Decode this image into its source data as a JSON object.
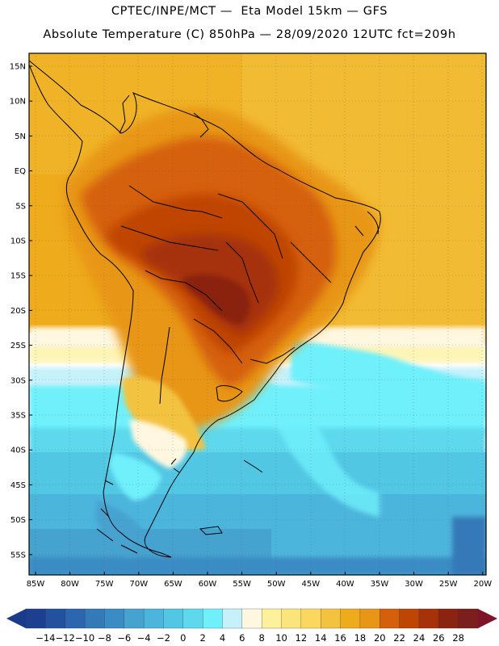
{
  "header": {
    "line1": "CPTEC/INPE/MCT —  Eta Model 15km — GFS",
    "line2": "Absolute Temperature (C) 850hPa — 28/09/2020 12UTC fct=209h"
  },
  "map": {
    "lat_labels": [
      "15N",
      "10N",
      "5N",
      "EQ",
      "5S",
      "10S",
      "15S",
      "20S",
      "25S",
      "30S",
      "35S",
      "40S",
      "45S",
      "50S",
      "55S"
    ],
    "lon_labels": [
      "85W",
      "80W",
      "75W",
      "70W",
      "65W",
      "60W",
      "55W",
      "50W",
      "45W",
      "40W",
      "35W",
      "30W",
      "25W",
      "20W"
    ]
  },
  "colorbar": {
    "ticks": [
      "−14",
      "−12",
      "−10",
      "−8",
      "−6",
      "−4",
      "−2",
      "0",
      "2",
      "4",
      "6",
      "8",
      "10",
      "12",
      "14",
      "16",
      "18",
      "20",
      "22",
      "24",
      "26",
      "28"
    ],
    "colors": [
      "#1c3f8f",
      "#22529e",
      "#2b66ae",
      "#3479b8",
      "#3a8cc4",
      "#46a2cf",
      "#4cb5dc",
      "#52c7e4",
      "#5dd8ed",
      "#6ff0fb",
      "#c5f1fb",
      "#fff7e0",
      "#fdf19b",
      "#fbe57a",
      "#f9d85d",
      "#f3c33f",
      "#eeab1c",
      "#e89617",
      "#d5600b",
      "#bf4505",
      "#a6320a",
      "#8a2310",
      "#7a1f1c"
    ],
    "under_color": "#1a3a8a",
    "over_color": "#7e1428"
  }
}
